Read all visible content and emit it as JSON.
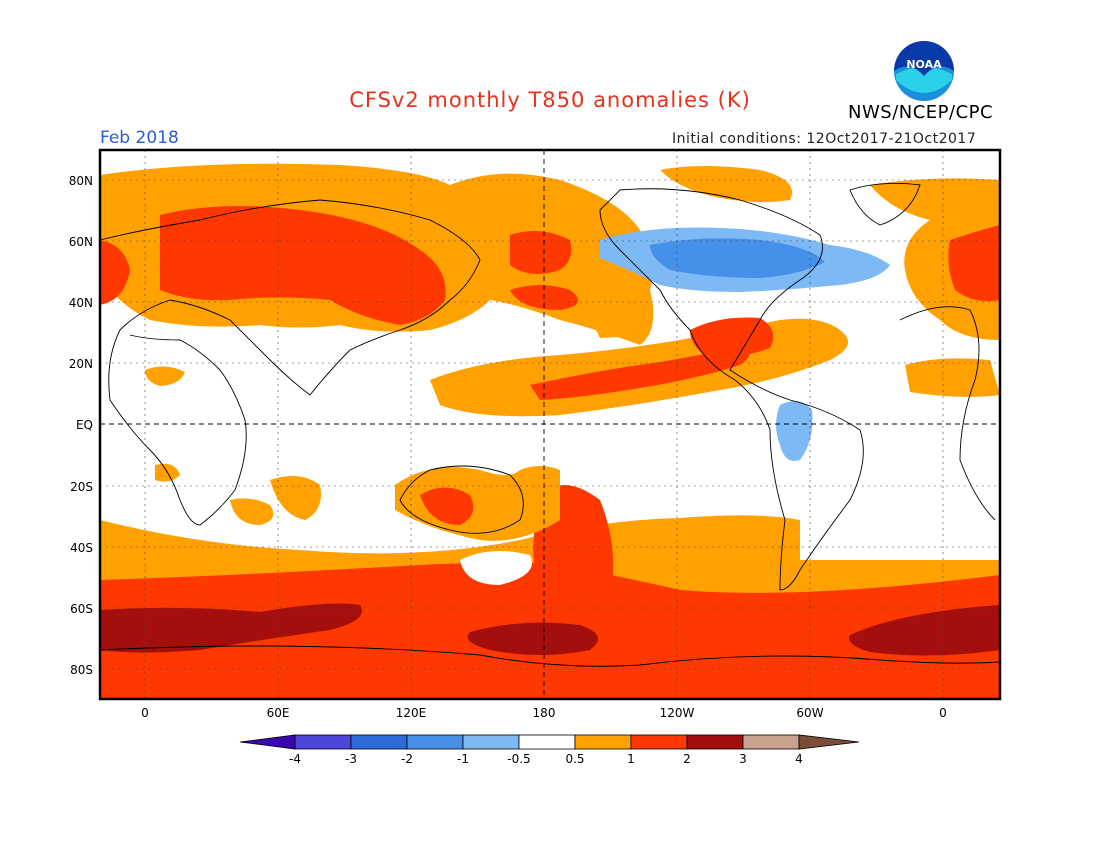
{
  "title": "CFSv2 monthly T850 anomalies (K)",
  "month_label": "Feb 2018",
  "initial_conditions": "Initial conditions: 12Oct2017-21Oct2017",
  "agency": "NWS/NCEP/CPC",
  "logo_text": "NOAA",
  "colors": {
    "ocean_land_background": "#ffffff",
    "anom_neg_0_5_to_1": "#7db9f5",
    "anom_neg_1_to_2": "#4690ea",
    "anom_0_5_to_1": "#ffa100",
    "anom_1_to_2": "#ff3800",
    "anom_2_to_3": "#a40f0d",
    "title_red": "#e8311c",
    "month_blue": "#2a5bd7"
  },
  "map": {
    "lat_labels": [
      "80N",
      "60N",
      "40N",
      "20N",
      "EQ",
      "20S",
      "40S",
      "60S",
      "80S"
    ],
    "lon_labels": [
      "0",
      "60E",
      "120E",
      "180",
      "120W",
      "60W",
      "0"
    ]
  },
  "colorbar": {
    "colors": [
      "#3a06b0",
      "#4d44d9",
      "#2a6bd9",
      "#4690ea",
      "#7db9f5",
      "#ffffff",
      "#ffa100",
      "#ff3800",
      "#a40f0d",
      "#c8a28f",
      "#7a4c3a"
    ],
    "tick_labels": [
      "-4",
      "-3",
      "-2",
      "-1",
      "-0.5",
      "0.5",
      "1",
      "2",
      "3",
      "4"
    ]
  }
}
